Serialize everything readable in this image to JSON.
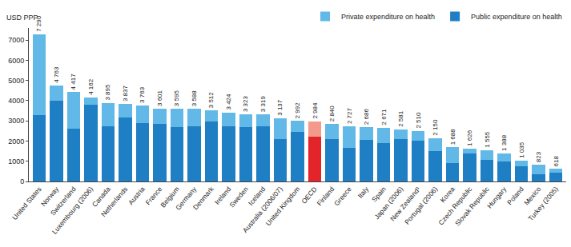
{
  "chart_data": {
    "type": "bar",
    "stacked": true,
    "ylabel": "USD PPP",
    "categories": [
      "United States",
      "Norway",
      "Switzerland",
      "Luxembourg (2006)",
      "Canada",
      "Netherlands",
      "Austria",
      "France",
      "Belgium",
      "Germany",
      "Denmark",
      "Ireland",
      "Sweden",
      "Iceland",
      "Australia (2006/07)",
      "United Kingdom",
      "OECD",
      "Finland",
      "Greece",
      "Italy",
      "Spain",
      "Japan (2006)",
      "New Zealand¹",
      "Portugal (2006)",
      "Korea",
      "Czech Republic",
      "Slovak Republic",
      "Hungary",
      "Poland",
      "Mexico",
      "Turkey (2005)"
    ],
    "series": [
      {
        "name": "Public expenditure on health",
        "color": "#1f7fc4",
        "colors": [
          "#1f7fc4",
          "#1f7fc4",
          "#1f7fc4",
          "#1f7fc4",
          "#1f7fc4",
          "#1f7fc4",
          "#1f7fc4",
          "#1f7fc4",
          "#1f7fc4",
          "#1f7fc4",
          "#1f7fc4",
          "#1f7fc4",
          "#1f7fc4",
          "#1f7fc4",
          "#1f7fc4",
          "#1f7fc4",
          "#e3242b",
          "#1f7fc4",
          "#1f7fc4",
          "#1f7fc4",
          "#1f7fc4",
          "#1f7fc4",
          "#1f7fc4",
          "#1f7fc4",
          "#1f7fc4",
          "#1f7fc4",
          "#1f7fc4",
          "#1f7fc4",
          "#1f7fc4",
          "#1f7fc4",
          "#1f7fc4"
        ],
        "values": [
          3300,
          4000,
          2600,
          3800,
          2750,
          3150,
          2900,
          2850,
          2700,
          2750,
          2950,
          2750,
          2700,
          2750,
          2100,
          2450,
          2200,
          2100,
          1650,
          2050,
          1900,
          2100,
          2000,
          1500,
          900,
          1400,
          1050,
          980,
          740,
          370,
          440
        ]
      },
      {
        "name": "Private expenditure on health",
        "color": "#62b9e8",
        "colors": [
          "#62b9e8",
          "#62b9e8",
          "#62b9e8",
          "#62b9e8",
          "#62b9e8",
          "#62b9e8",
          "#62b9e8",
          "#62b9e8",
          "#62b9e8",
          "#62b9e8",
          "#62b9e8",
          "#62b9e8",
          "#62b9e8",
          "#62b9e8",
          "#62b9e8",
          "#62b9e8",
          "#f39a8c",
          "#62b9e8",
          "#62b9e8",
          "#62b9e8",
          "#62b9e8",
          "#62b9e8",
          "#62b9e8",
          "#62b9e8",
          "#62b9e8",
          "#62b9e8",
          "#62b9e8",
          "#62b9e8",
          "#62b9e8",
          "#62b9e8",
          "#62b9e8"
        ],
        "values": [
          3990,
          763,
          1817,
          362,
          1145,
          687,
          863,
          751,
          895,
          838,
          562,
          674,
          623,
          569,
          1037,
          542,
          784,
          740,
          1077,
          636,
          771,
          481,
          510,
          650,
          788,
          226,
          505,
          408,
          295,
          453,
          178
        ]
      }
    ],
    "totals": [
      7290,
      4763,
      4417,
      4162,
      3895,
      3837,
      3763,
      3601,
      3595,
      3588,
      3512,
      3424,
      3323,
      3319,
      3137,
      2992,
      2984,
      2840,
      2727,
      2686,
      2671,
      2581,
      2510,
      2150,
      1688,
      1626,
      1555,
      1388,
      1035,
      823,
      618
    ],
    "total_labels": [
      "7 290",
      "4 763",
      "4 417",
      "4 162",
      "3 895",
      "3 837",
      "3 763",
      "3 601",
      "3 595",
      "3 588",
      "3 512",
      "3 424",
      "3 323",
      "3 319",
      "3 137",
      "2 992",
      "2 984",
      "2 840",
      "2 727",
      "2 686",
      "2 671",
      "2 581",
      "2 510",
      "2 150",
      "1 688",
      "1 626",
      "1 555",
      "1 388",
      "1 035",
      "823",
      "618"
    ],
    "data_labels": true,
    "ylim": [
      0,
      7600
    ],
    "yticks": [
      0,
      1000,
      2000,
      3000,
      4000,
      5000,
      6000,
      7000
    ],
    "grid": false,
    "legend": "top right"
  }
}
